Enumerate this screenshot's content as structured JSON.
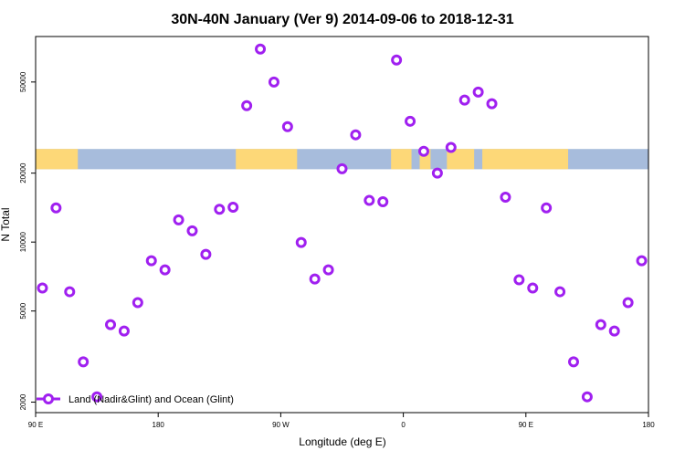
{
  "chart_data": {
    "type": "scatter",
    "title": "30N-40N January (Ver 9)   2014-09-06 to 2018-12-31",
    "xlabel": "Longitude (deg E)",
    "ylabel": "N Total",
    "yscale": "log",
    "xlim": [
      90,
      540
    ],
    "ylim": [
      1800,
      79000
    ],
    "xticks": [
      {
        "value": 90,
        "label": "90 E"
      },
      {
        "value": 180,
        "label": "180"
      },
      {
        "value": 270,
        "label": "90 W"
      },
      {
        "value": 360,
        "label": "0"
      },
      {
        "value": 450,
        "label": "90 E"
      },
      {
        "value": 540,
        "label": "180"
      }
    ],
    "yticks": [
      {
        "value": 2000,
        "label": "2000"
      },
      {
        "value": 5000,
        "label": "5000"
      },
      {
        "value": 10000,
        "label": "10000"
      },
      {
        "value": 20000,
        "label": "20000"
      },
      {
        "value": 50000,
        "label": "50000"
      }
    ],
    "legend": {
      "position": "bottom-left",
      "entries": [
        "Land (Nadir&Glint) and Ocean (Glint)"
      ]
    },
    "series": [
      {
        "name": "Land (Nadir&Glint) and Ocean (Glint)",
        "color": "#a020f0",
        "x": [
          95,
          105,
          115,
          125,
          135,
          145,
          155,
          165,
          175,
          185,
          195,
          205,
          215,
          225,
          235,
          245,
          255,
          265,
          275,
          285,
          295,
          305,
          315,
          325,
          335,
          345,
          355,
          365,
          375,
          385,
          395,
          405,
          415,
          425,
          435,
          445,
          455,
          465,
          475,
          485,
          495,
          505,
          515,
          525,
          535
        ],
        "y": [
          6300,
          14100,
          6070,
          3000,
          2110,
          4360,
          4090,
          5440,
          8290,
          7560,
          12500,
          11200,
          8840,
          13900,
          14200,
          39400,
          69600,
          50000,
          31900,
          9960,
          6900,
          7560,
          20900,
          29400,
          15200,
          15000,
          62400,
          33700,
          24900,
          20000,
          25900,
          41700,
          45200,
          40200,
          15700,
          6840,
          6300,
          14100,
          6070,
          3000,
          2110,
          4360,
          4090,
          5440,
          8290
        ]
      }
    ],
    "map_band": {
      "lat_range": "30N-40N",
      "land_color": "#fdd878",
      "ocean_color": "#a7bcdc",
      "y_range": [
        20800,
        25500
      ]
    }
  }
}
